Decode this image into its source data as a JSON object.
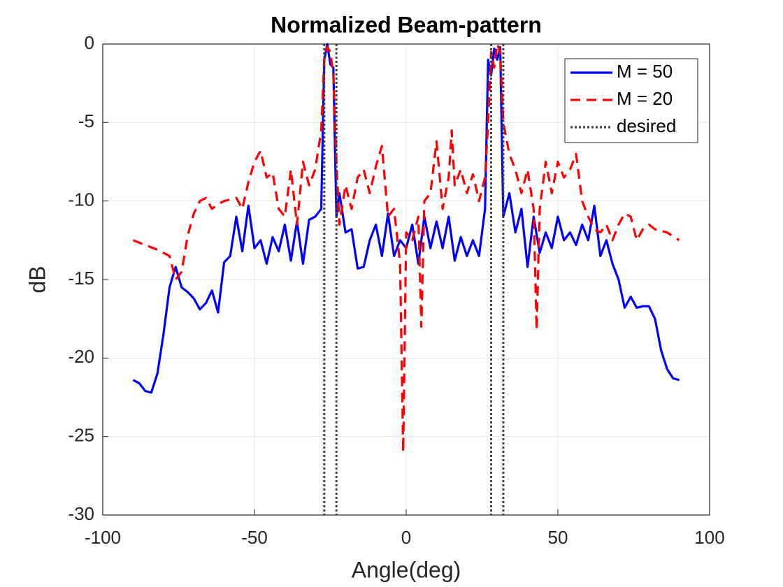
{
  "chart_data": {
    "type": "line",
    "title": "Normalized Beam-pattern",
    "xlabel": "Angle(deg)",
    "ylabel": "dB",
    "xlim": [
      -100,
      100
    ],
    "ylim": [
      -30,
      0
    ],
    "xticks": [
      -100,
      -50,
      0,
      50,
      100
    ],
    "yticks": [
      -30,
      -25,
      -20,
      -15,
      -10,
      -5,
      0
    ],
    "grid": true,
    "legend": "upper right",
    "series": [
      {
        "name": "M = 50",
        "color": "#0000ff",
        "style": "solid",
        "x": [
          -90,
          -88,
          -86,
          -84,
          -82,
          -80,
          -78,
          -76,
          -74,
          -72,
          -70,
          -68,
          -66,
          -64,
          -62,
          -60,
          -58,
          -56,
          -54,
          -52,
          -50,
          -48,
          -46,
          -44,
          -42,
          -40,
          -38,
          -36,
          -34,
          -32,
          -30,
          -28,
          -27,
          -26,
          -25,
          -24,
          -23,
          -22,
          -20,
          -18,
          -16,
          -14,
          -12,
          -10,
          -8,
          -6,
          -4,
          -2,
          0,
          2,
          4,
          6,
          8,
          10,
          12,
          14,
          16,
          18,
          20,
          22,
          24,
          26,
          27,
          28,
          29,
          30,
          31,
          32,
          34,
          36,
          38,
          40,
          42,
          44,
          46,
          48,
          50,
          52,
          54,
          56,
          58,
          60,
          62,
          64,
          66,
          68,
          70,
          72,
          74,
          76,
          78,
          80,
          82,
          84,
          86,
          88,
          90
        ],
        "values": [
          -21.4,
          -21.6,
          -22.1,
          -22.2,
          -21,
          -18.5,
          -15.5,
          -14.2,
          -15.5,
          -15.8,
          -16.2,
          -16.9,
          -16.5,
          -15.7,
          -17.1,
          -13.9,
          -13.5,
          -11,
          -13.2,
          -10.3,
          -13,
          -12.5,
          -14,
          -12.3,
          -13.2,
          -11.5,
          -13.8,
          -11.3,
          -14,
          -11.2,
          -11,
          -10.5,
          -1,
          0,
          -1.3,
          -1.5,
          -11,
          -9.5,
          -12,
          -11.8,
          -14.3,
          -14.2,
          -12.5,
          -11.5,
          -13.5,
          -10.8,
          -13.5,
          -12.5,
          -13,
          -11.5,
          -14,
          -11,
          -13,
          -11.3,
          -13,
          -11,
          -13.8,
          -12.3,
          -13.5,
          -12.5,
          -13.5,
          -10.5,
          -1,
          -2,
          -0.3,
          -1,
          -0.2,
          -11,
          -9.5,
          -12,
          -10.5,
          -14.2,
          -11,
          -13.3,
          -12,
          -13,
          -11,
          -12.5,
          -12,
          -12.8,
          -11.5,
          -12.5,
          -10.3,
          -13.5,
          -12.5,
          -14,
          -15,
          -16.8,
          -16.1,
          -16.8,
          -16.7,
          -16.7,
          -17.5,
          -19.5,
          -20.7,
          -21.3,
          -21.4
        ]
      },
      {
        "name": "M = 20",
        "color": "#ff0000",
        "style": "dashed",
        "x": [
          -90,
          -86,
          -82,
          -78,
          -76,
          -74,
          -72,
          -70,
          -68,
          -66,
          -64,
          -62,
          -60,
          -56,
          -54,
          -52,
          -50,
          -48,
          -46,
          -44,
          -42,
          -40,
          -38,
          -36,
          -34,
          -32,
          -30,
          -28,
          -27,
          -26,
          -25,
          -24,
          -23,
          -22,
          -20,
          -18,
          -16,
          -14,
          -12,
          -10,
          -8,
          -6,
          -4,
          -2,
          -1,
          0,
          2,
          4,
          5,
          6,
          8,
          10,
          12,
          14,
          15,
          16,
          18,
          20,
          22,
          24,
          26,
          27,
          28,
          29,
          30,
          31,
          32,
          34,
          36,
          38,
          40,
          42,
          43,
          44,
          46,
          48,
          50,
          52,
          54,
          56,
          58,
          60,
          62,
          64,
          66,
          68,
          70,
          72,
          74,
          76,
          78,
          80,
          82,
          86,
          90
        ],
        "values": [
          -12.5,
          -12.8,
          -13.1,
          -13.5,
          -15,
          -14.5,
          -12.2,
          -10.8,
          -10,
          -9.8,
          -10.5,
          -10.2,
          -10,
          -9.8,
          -10.5,
          -8.8,
          -7.5,
          -6.8,
          -8.5,
          -8.2,
          -10.5,
          -11,
          -8,
          -11.5,
          -7.5,
          -9,
          -8,
          -5.5,
          -1,
          -0.2,
          -0.5,
          -2,
          -7.5,
          -11.5,
          -9,
          -10.5,
          -8.5,
          -8,
          -9.5,
          -7.8,
          -6.5,
          -11,
          -10.5,
          -14,
          -26,
          -12,
          -12.5,
          -11,
          -18,
          -10,
          -9.5,
          -6.2,
          -10.5,
          -8.5,
          -5.5,
          -9,
          -8,
          -9.5,
          -8.3,
          -10,
          -8.5,
          -5,
          -0.5,
          -1.5,
          0,
          -0.5,
          -5,
          -7,
          -8,
          -9.5,
          -8,
          -10.5,
          -18.2,
          -10.5,
          -7.5,
          -9.5,
          -7.5,
          -8.5,
          -8,
          -7,
          -10,
          -11,
          -11.8,
          -12,
          -11.5,
          -12.5,
          -11.5,
          -10.8,
          -11,
          -12.5,
          -11.8,
          -11.5,
          -11.8,
          -12,
          -12.5
        ]
      },
      {
        "name": "desired",
        "color": "#404040",
        "style": "dotted",
        "x": [
          -27,
          -27,
          null,
          -23,
          -23,
          null,
          28,
          28,
          null,
          32,
          32
        ],
        "values": [
          0,
          -30,
          null,
          0,
          -30,
          null,
          0,
          -30,
          null,
          0,
          -30
        ]
      }
    ]
  }
}
